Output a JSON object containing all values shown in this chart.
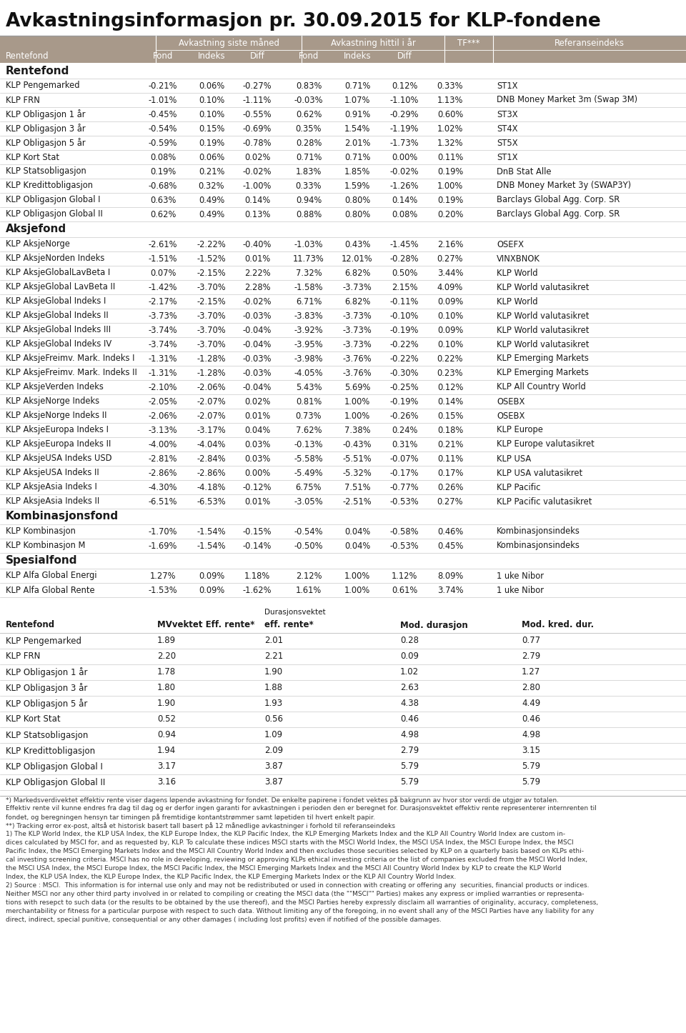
{
  "title": "Avkastningsinformasjon pr. 30.09.2015 for KLP-fondene",
  "header_bg": "#a8998a",
  "white_bg": "#ffffff",
  "rentefond_rows": [
    [
      "KLP Pengemarked",
      "-0.21%",
      "0.06%",
      "-0.27%",
      "0.83%",
      "0.71%",
      "0.12%",
      "0.33%",
      "ST1X"
    ],
    [
      "KLP FRN",
      "-1.01%",
      "0.10%",
      "-1.11%",
      "-0.03%",
      "1.07%",
      "-1.10%",
      "1.13%",
      "DNB Money Market 3m (Swap 3M)"
    ],
    [
      "KLP Obligasjon 1 år",
      "-0.45%",
      "0.10%",
      "-0.55%",
      "0.62%",
      "0.91%",
      "-0.29%",
      "0.60%",
      "ST3X"
    ],
    [
      "KLP Obligasjon 3 år",
      "-0.54%",
      "0.15%",
      "-0.69%",
      "0.35%",
      "1.54%",
      "-1.19%",
      "1.02%",
      "ST4X"
    ],
    [
      "KLP Obligasjon 5 år",
      "-0.59%",
      "0.19%",
      "-0.78%",
      "0.28%",
      "2.01%",
      "-1.73%",
      "1.32%",
      "ST5X"
    ],
    [
      "KLP Kort Stat",
      "0.08%",
      "0.06%",
      "0.02%",
      "0.71%",
      "0.71%",
      "0.00%",
      "0.11%",
      "ST1X"
    ],
    [
      "KLP Statsobligasjon",
      "0.19%",
      "0.21%",
      "-0.02%",
      "1.83%",
      "1.85%",
      "-0.02%",
      "0.19%",
      "DnB Stat Alle"
    ],
    [
      "KLP Kredittobligasjon",
      "-0.68%",
      "0.32%",
      "-1.00%",
      "0.33%",
      "1.59%",
      "-1.26%",
      "1.00%",
      "DNB Money Market 3y (SWAP3Y)"
    ],
    [
      "KLP Obligasjon Global I",
      "0.63%",
      "0.49%",
      "0.14%",
      "0.94%",
      "0.80%",
      "0.14%",
      "0.19%",
      "Barclays Global Agg. Corp. SR"
    ],
    [
      "KLP Obligasjon Global II",
      "0.62%",
      "0.49%",
      "0.13%",
      "0.88%",
      "0.80%",
      "0.08%",
      "0.20%",
      "Barclays Global Agg. Corp. SR"
    ]
  ],
  "aksjefond_rows": [
    [
      "KLP AksjeNorge",
      "-2.61%",
      "-2.22%",
      "-0.40%",
      "-1.03%",
      "0.43%",
      "-1.45%",
      "2.16%",
      "OSEFX"
    ],
    [
      "KLP AksjeNorden Indeks",
      "-1.51%",
      "-1.52%",
      "0.01%",
      "11.73%",
      "12.01%",
      "-0.28%",
      "0.27%",
      "VINXBNOK"
    ],
    [
      "KLP AksjeGlobalLavBeta I",
      "0.07%",
      "-2.15%",
      "2.22%",
      "7.32%",
      "6.82%",
      "0.50%",
      "3.44%",
      "KLP World"
    ],
    [
      "KLP AksjeGlobal LavBeta II",
      "-1.42%",
      "-3.70%",
      "2.28%",
      "-1.58%",
      "-3.73%",
      "2.15%",
      "4.09%",
      "KLP World valutasikret"
    ],
    [
      "KLP AksjeGlobal Indeks I",
      "-2.17%",
      "-2.15%",
      "-0.02%",
      "6.71%",
      "6.82%",
      "-0.11%",
      "0.09%",
      "KLP World"
    ],
    [
      "KLP AksjeGlobal Indeks II",
      "-3.73%",
      "-3.70%",
      "-0.03%",
      "-3.83%",
      "-3.73%",
      "-0.10%",
      "0.10%",
      "KLP World valutasikret"
    ],
    [
      "KLP AksjeGlobal Indeks III",
      "-3.74%",
      "-3.70%",
      "-0.04%",
      "-3.92%",
      "-3.73%",
      "-0.19%",
      "0.09%",
      "KLP World valutasikret"
    ],
    [
      "KLP AksjeGlobal Indeks IV",
      "-3.74%",
      "-3.70%",
      "-0.04%",
      "-3.95%",
      "-3.73%",
      "-0.22%",
      "0.10%",
      "KLP World valutasikret"
    ],
    [
      "KLP AksjeFreimv. Mark. Indeks I",
      "-1.31%",
      "-1.28%",
      "-0.03%",
      "-3.98%",
      "-3.76%",
      "-0.22%",
      "0.22%",
      "KLP Emerging Markets"
    ],
    [
      "KLP AksjeFreimv. Mark. Indeks II",
      "-1.31%",
      "-1.28%",
      "-0.03%",
      "-4.05%",
      "-3.76%",
      "-0.30%",
      "0.23%",
      "KLP Emerging Markets"
    ],
    [
      "KLP AksjeVerden Indeks",
      "-2.10%",
      "-2.06%",
      "-0.04%",
      "5.43%",
      "5.69%",
      "-0.25%",
      "0.12%",
      "KLP All Country World"
    ],
    [
      "KLP AksjeNorge Indeks",
      "-2.05%",
      "-2.07%",
      "0.02%",
      "0.81%",
      "1.00%",
      "-0.19%",
      "0.14%",
      "OSEBX"
    ],
    [
      "KLP AksjeNorge Indeks II",
      "-2.06%",
      "-2.07%",
      "0.01%",
      "0.73%",
      "1.00%",
      "-0.26%",
      "0.15%",
      "OSEBX"
    ],
    [
      "KLP AksjeEuropa Indeks I",
      "-3.13%",
      "-3.17%",
      "0.04%",
      "7.62%",
      "7.38%",
      "0.24%",
      "0.18%",
      "KLP Europe"
    ],
    [
      "KLP AksjeEuropa Indeks II",
      "-4.00%",
      "-4.04%",
      "0.03%",
      "-0.13%",
      "-0.43%",
      "0.31%",
      "0.21%",
      "KLP Europe valutasikret"
    ],
    [
      "KLP AksjeUSA Indeks USD",
      "-2.81%",
      "-2.84%",
      "0.03%",
      "-5.58%",
      "-5.51%",
      "-0.07%",
      "0.11%",
      "KLP USA"
    ],
    [
      "KLP AksjeUSA Indeks II",
      "-2.86%",
      "-2.86%",
      "0.00%",
      "-5.49%",
      "-5.32%",
      "-0.17%",
      "0.17%",
      "KLP USA valutasikret"
    ],
    [
      "KLP AksjeAsia Indeks I",
      "-4.30%",
      "-4.18%",
      "-0.12%",
      "6.75%",
      "7.51%",
      "-0.77%",
      "0.26%",
      "KLP Pacific"
    ],
    [
      "KLP AksjeAsia Indeks II",
      "-6.51%",
      "-6.53%",
      "0.01%",
      "-3.05%",
      "-2.51%",
      "-0.53%",
      "0.27%",
      "KLP Pacific valutasikret"
    ]
  ],
  "kombinasjonsfond_rows": [
    [
      "KLP Kombinasjon",
      "-1.70%",
      "-1.54%",
      "-0.15%",
      "-0.54%",
      "0.04%",
      "-0.58%",
      "0.46%",
      "Kombinasjonsindeks"
    ],
    [
      "KLP Kombinasjon M",
      "-1.69%",
      "-1.54%",
      "-0.14%",
      "-0.50%",
      "0.04%",
      "-0.53%",
      "0.45%",
      "Kombinasjonsindeks"
    ]
  ],
  "spesialfond_rows": [
    [
      "KLP Alfa Global Energi",
      "1.27%",
      "0.09%",
      "1.18%",
      "2.12%",
      "1.00%",
      "1.12%",
      "8.09%",
      "1 uke Nibor"
    ],
    [
      "KLP Alfa Global Rente",
      "-1.53%",
      "0.09%",
      "-1.62%",
      "1.61%",
      "1.00%",
      "0.61%",
      "3.74%",
      "1 uke Nibor"
    ]
  ],
  "duration_rows": [
    [
      "KLP Pengemarked",
      "1.89",
      "2.01",
      "0.28",
      "0.77"
    ],
    [
      "KLP FRN",
      "2.20",
      "2.21",
      "0.09",
      "2.79"
    ],
    [
      "KLP Obligasjon 1 år",
      "1.78",
      "1.90",
      "1.02",
      "1.27"
    ],
    [
      "KLP Obligasjon 3 år",
      "1.80",
      "1.88",
      "2.63",
      "2.80"
    ],
    [
      "KLP Obligasjon 5 år",
      "1.90",
      "1.93",
      "4.38",
      "4.49"
    ],
    [
      "KLP Kort Stat",
      "0.52",
      "0.56",
      "0.46",
      "0.46"
    ],
    [
      "KLP Statsobligasjon",
      "0.94",
      "1.09",
      "4.98",
      "4.98"
    ],
    [
      "KLP Kredittobligasjon",
      "1.94",
      "2.09",
      "2.79",
      "3.15"
    ],
    [
      "KLP Obligasjon Global I",
      "3.17",
      "3.87",
      "5.79",
      "5.79"
    ],
    [
      "KLP Obligasjon Global II",
      "3.16",
      "3.87",
      "5.79",
      "5.79"
    ]
  ],
  "footnotes": [
    "*) Markedsverdivektet effektiv rente viser dagens løpende avkastning for fondet. De enkelte papirene i fondet vektes på bakgrunn av hvor stor verdi de utgjør av totalen.",
    "Effektiv rente vil kunne endres fra dag til dag og er derfor ingen garanti for avkastningen i perioden den er beregnet for. Durasjonsvektet effektiv rente representerer internrenten til",
    "fondet, og beregningen hensyn tar timingen på fremtidige kontantstrømmer samt løpetiden til hvert enkelt papir.",
    "**) Tracking error ex-post, altså et historisk basert tall basert på 12 månedlige avkastninger i forhold til referanseindeks",
    "1) The KLP World Index, the KLP USA Index, the KLP Europe Index, the KLP Pacific Index, the KLP Emerging Markets Index and the KLP All Country World Index are custom in-",
    "dices calculated by MSCI for, and as requested by, KLP. To calculate these indices MSCI starts with the MSCI World Index, the MSCI USA Index, the MSCI Europe Index, the MSCI",
    "Pacific Index, the MSCI Emerging Markets Index and the MSCI All Country World Index and then excludes those securities selected by KLP on a quarterly basis based on KLPs ethi-",
    "cal investing screening criteria. MSCI has no role in developing, reviewing or approving KLPs ethical investing criteria or the list of companies excluded from the MSCI World Index,",
    "the MSCI USA Index, the MSCI Europe Index, the MSCI Pacific Index, the MSCI Emerging Markets Index and the MSCI All Country World Index by KLP to create the KLP World",
    "Index, the KLP USA Index, the KLP Europe Index, the KLP Pacific Index, the KLP Emerging Markets Index or the KLP All Country World Index.",
    "2) Source : MSCI.  This information is for internal use only and may not be redistributed or used in connection with creating or offering any  securities, financial products or indices.",
    "Neither MSCI nor any other third party involved in or related to compiling or creating the MSCI data (the \"\"MSCI\"\" Parties) makes any express or implied warranties or representa-",
    "tions with resepct to such data (or the results to be obtained by the use thereof), and the MSCI Parties hereby expressly disclaim all warranties of originality, accuracy, completeness,",
    "merchantability or fitness for a particular purpose with respect to such data. Without limiting any of the foregoing, in no event shall any of the MSCI Parties have any liability for any",
    "direct, indirect, special punitive, consequential or any other damages ( including lost profits) even if notified of the possible damages."
  ]
}
